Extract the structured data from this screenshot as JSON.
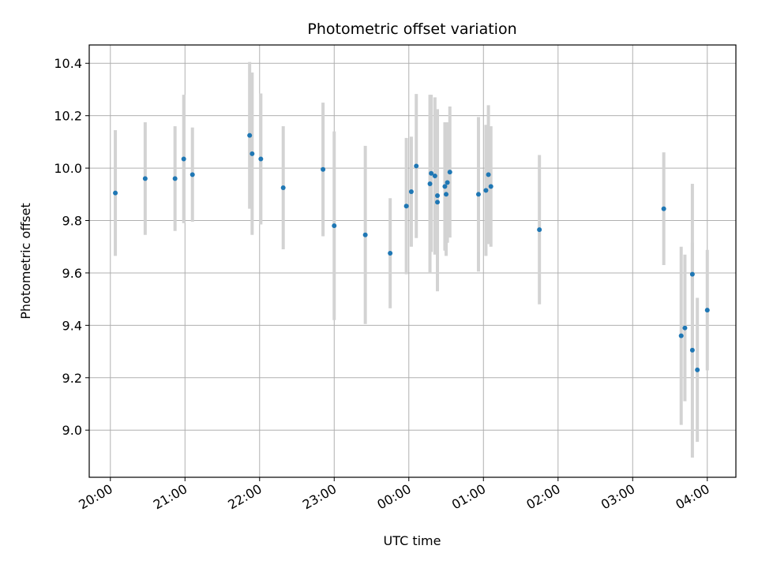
{
  "chart_data": {
    "type": "scatter",
    "title": "Photometric offset variation",
    "xlabel": "UTC time",
    "ylabel": "Photometric offset",
    "x_unit": "UTC hours (times after midnight continue past 24)",
    "xlim": [
      "19:43",
      "04:23 (next day)"
    ],
    "ylim": [
      8.82,
      10.47
    ],
    "x_ticks": [
      "20:00",
      "21:00",
      "22:00",
      "23:00",
      "00:00",
      "01:00",
      "02:00",
      "03:00",
      "04:00"
    ],
    "y_ticks": [
      "9.0",
      "9.2",
      "9.4",
      "9.6",
      "9.8",
      "10.0",
      "10.2",
      "10.4"
    ],
    "grid": true,
    "marker_color": "#1f77b4",
    "errorbar_color": "#d3d3d3",
    "points": [
      {
        "t": "20:04",
        "y": 9.905,
        "err": 0.24
      },
      {
        "t": "20:28",
        "y": 9.96,
        "err": 0.215
      },
      {
        "t": "20:52",
        "y": 9.96,
        "err": 0.2
      },
      {
        "t": "20:59",
        "y": 10.035,
        "err": 0.245
      },
      {
        "t": "21:06",
        "y": 9.975,
        "err": 0.18
      },
      {
        "t": "21:52",
        "y": 10.125,
        "err": 0.28
      },
      {
        "t": "21:54",
        "y": 10.055,
        "err": 0.31
      },
      {
        "t": "22:01",
        "y": 10.035,
        "err": 0.25
      },
      {
        "t": "22:19",
        "y": 9.925,
        "err": 0.235
      },
      {
        "t": "22:51",
        "y": 9.995,
        "err": 0.255
      },
      {
        "t": "23:00",
        "y": 9.78,
        "err": 0.36
      },
      {
        "t": "23:25",
        "y": 9.745,
        "err": 0.34
      },
      {
        "t": "23:45",
        "y": 9.675,
        "err": 0.21
      },
      {
        "t": "23:58",
        "y": 9.855,
        "err": 0.26
      },
      {
        "t": "00:02",
        "y": 9.91,
        "err": 0.21
      },
      {
        "t": "00:06",
        "y": 10.008,
        "err": 0.275
      },
      {
        "t": "00:17",
        "y": 9.94,
        "err": 0.34
      },
      {
        "t": "00:18",
        "y": 9.98,
        "err": 0.3
      },
      {
        "t": "00:21",
        "y": 9.97,
        "err": 0.3
      },
      {
        "t": "00:23",
        "y": 9.895,
        "err": 0.33
      },
      {
        "t": "00:23",
        "y": 9.87,
        "err": 0.34
      },
      {
        "t": "00:29",
        "y": 9.93,
        "err": 0.245
      },
      {
        "t": "00:30",
        "y": 9.9,
        "err": 0.235
      },
      {
        "t": "00:31",
        "y": 9.945,
        "err": 0.23
      },
      {
        "t": "00:33",
        "y": 9.985,
        "err": 0.25
      },
      {
        "t": "00:56",
        "y": 9.9,
        "err": 0.295
      },
      {
        "t": "01:02",
        "y": 9.915,
        "err": 0.25
      },
      {
        "t": "01:04",
        "y": 9.975,
        "err": 0.265
      },
      {
        "t": "01:06",
        "y": 9.93,
        "err": 0.23
      },
      {
        "t": "01:45",
        "y": 9.765,
        "err": 0.285
      },
      {
        "t": "03:25",
        "y": 9.845,
        "err": 0.215
      },
      {
        "t": "03:39",
        "y": 9.36,
        "err": 0.34
      },
      {
        "t": "03:42",
        "y": 9.39,
        "err": 0.28
      },
      {
        "t": "03:48",
        "y": 9.595,
        "err": 0.345
      },
      {
        "t": "03:48",
        "y": 9.305,
        "err": 0.41
      },
      {
        "t": "03:52",
        "y": 9.23,
        "err": 0.275
      },
      {
        "t": "04:00",
        "y": 9.458,
        "err": 0.23
      }
    ]
  }
}
